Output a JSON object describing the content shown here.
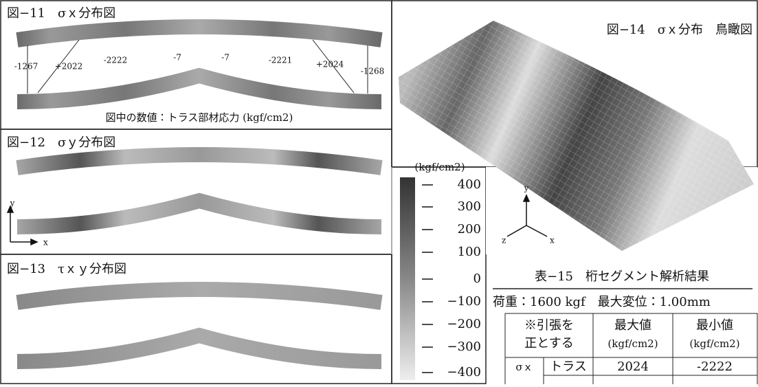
{
  "fig11": {
    "title": "図−11　σｘ分布図",
    "labels": [
      "-1267",
      "+2022",
      "-2222",
      "-7",
      "-7",
      "-2221",
      "+2024",
      "-1268"
    ],
    "caption": "図中の数値：トラス部材応力 (kgf/cm2)"
  },
  "fig12": {
    "title": "図−12　σｙ分布図",
    "axis_y": "y",
    "axis_x": "x"
  },
  "fig13": {
    "title": "図−13　τｘｙ分布図"
  },
  "colorbar": {
    "unit": "(kgf/cm2)",
    "ticks": [
      "400",
      "300",
      "200",
      "100",
      "0",
      "−100",
      "−200",
      "−300",
      "−400"
    ]
  },
  "fig14": {
    "title": "図−14　σｘ分布　鳥瞰図",
    "axis_y": "y",
    "axis_z": "z",
    "axis_x": "x"
  },
  "table": {
    "title": "表−15　桁セグメント解析結果",
    "conditions": "荷重：1600 kgf　最大変位：1.00mm",
    "header": [
      [
        "※引張を",
        "正とする"
      ],
      [
        "最大値",
        "(kgf/cm2)"
      ],
      [
        "最小値",
        "(kgf/cm2)"
      ]
    ],
    "rows": [
      [
        "σｘ",
        "トラス",
        "2024",
        "-2222"
      ]
    ]
  }
}
